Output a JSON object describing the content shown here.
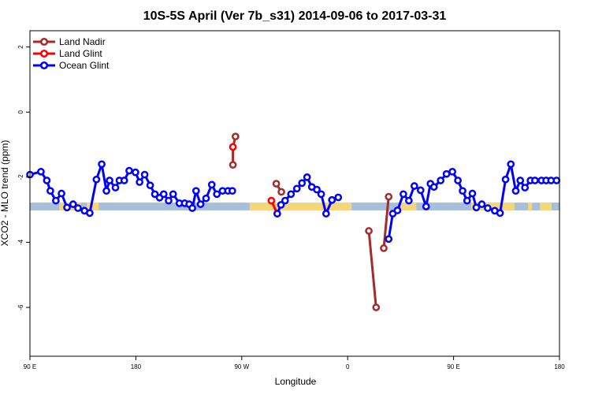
{
  "chart_data": {
    "type": "line",
    "title": "10S-5S April (Ver 7b_s31)   2014-09-06 to 2017-03-31",
    "xlabel": "Longitude",
    "ylabel": "XCO2 - MLO trend (ppm)",
    "xlim": [
      -90,
      180
    ],
    "ylim": [
      -7.5,
      2.5
    ],
    "x_ticks": [
      {
        "value": -90,
        "label": "90 E"
      },
      {
        "value": -36,
        "label": "180"
      },
      {
        "value": 18,
        "label": "90 W"
      },
      {
        "value": 72,
        "label": "0"
      },
      {
        "value": 126,
        "label": "90 E"
      },
      {
        "value": 180,
        "label": "180"
      }
    ],
    "y_ticks": [
      {
        "value": 2,
        "label": "2"
      },
      {
        "value": 0,
        "label": "0"
      },
      {
        "value": -2,
        "label": "-2"
      },
      {
        "value": -4,
        "label": "-4"
      },
      {
        "value": -6,
        "label": "-6"
      }
    ],
    "legend_position": "top-left",
    "band": {
      "y_range": [
        -3.02,
        -2.78
      ],
      "ocean_color": "#a7bfdc",
      "land_color": "#f5d77a",
      "land_x_ranges": [
        [
          -75,
          -64
        ],
        [
          -61,
          -55
        ],
        [
          22,
          74
        ],
        [
          99,
          107
        ],
        [
          135,
          157
        ],
        [
          164,
          166
        ],
        [
          170,
          176
        ]
      ]
    },
    "series": [
      {
        "name": "Land Nadir",
        "color": "#a52a2a",
        "segments": [
          {
            "x": [
              13.5,
              13.5,
              14.8
            ],
            "y": [
              -1.62,
              -1.07,
              -0.75
            ]
          },
          {
            "x": [
              35.6,
              38.2
            ],
            "y": [
              -2.2,
              -2.45
            ]
          },
          {
            "x": [
              82.8,
              86.5
            ],
            "y": [
              -3.65,
              -6.0
            ]
          },
          {
            "x": [
              90.4,
              92.9
            ],
            "y": [
              -4.18,
              -2.6
            ]
          }
        ]
      },
      {
        "name": "Land Glint",
        "color": "#ff0000",
        "segments": [
          {
            "x": [
              13.5
            ],
            "y": [
              -1.07
            ]
          },
          {
            "x": [
              33.1,
              36.1
            ],
            "y": [
              -2.72,
              -3.12
            ]
          }
        ]
      },
      {
        "name": "Ocean Glint",
        "color": "#0000ff",
        "segments": [
          {
            "x": [
              -90.0,
              -84.4,
              -81.4,
              -79.6,
              -76.8,
              -73.9,
              -71.1,
              -68.0,
              -65.5,
              -62.2,
              -59.5,
              -56.1,
              -53.4,
              -51.0,
              -49.4,
              -46.4,
              -44.4,
              -41.9,
              -39.4,
              -36.2,
              -34.1,
              -31.5,
              -28.7,
              -26.3,
              -23.9,
              -21.8,
              -19.3,
              -17.0,
              -13.8,
              -11.1,
              -8.8,
              -7.2,
              -5.3,
              -3.0,
              -0.2,
              2.7,
              5.3,
              8.2,
              11.0,
              13.2
            ],
            "y": [
              -1.92,
              -1.83,
              -2.1,
              -2.42,
              -2.72,
              -2.5,
              -2.93,
              -2.83,
              -2.95,
              -3.03,
              -3.1,
              -2.07,
              -1.6,
              -2.42,
              -2.1,
              -2.32,
              -2.1,
              -2.1,
              -1.8,
              -1.85,
              -2.15,
              -1.92,
              -2.25,
              -2.52,
              -2.63,
              -2.52,
              -2.72,
              -2.52,
              -2.8,
              -2.8,
              -2.83,
              -2.95,
              -2.42,
              -2.83,
              -2.65,
              -2.23,
              -2.52,
              -2.42,
              -2.42,
              -2.42
            ]
          },
          {
            "x": [
              36.1,
              38.0,
              40.1,
              43.1,
              46.1,
              48.7,
              51.3,
              53.7,
              56.3,
              58.5,
              61.0,
              64.0
            ],
            "y": [
              -3.12,
              -2.85,
              -2.72,
              -2.52,
              -2.35,
              -2.18,
              -2.0,
              -2.3,
              -2.38,
              -2.52,
              -3.12,
              -2.7
            ]
          },
          {
            "x": [
              64.0,
              67.2
            ],
            "y": [
              -2.7,
              -2.62
            ]
          },
          {
            "x": [
              92.9,
              95.0,
              97.4,
              100.4,
              103.2,
              106.0,
              109.2,
              112.0,
              114.2,
              116.0,
              119.4,
              122.4,
              125.4,
              128.2,
              130.6,
              132.9,
              135.6,
              137.6,
              140.4,
              143.4,
              147.0,
              149.7,
              152.5,
              155.2,
              157.7,
              160.0,
              162.4,
              165.2,
              167.5,
              170.8,
              173.2,
              175.7,
              178.5
            ],
            "y": [
              -3.9,
              -3.12,
              -3.02,
              -2.52,
              -2.72,
              -2.27,
              -2.4,
              -2.9,
              -2.2,
              -2.3,
              -2.1,
              -1.9,
              -1.83,
              -2.1,
              -2.42,
              -2.72,
              -2.5,
              -2.93,
              -2.83,
              -2.95,
              -3.03,
              -3.1,
              -2.07,
              -1.6,
              -2.42,
              -2.1,
              -2.32,
              -2.1,
              -2.1,
              -2.1,
              -2.1,
              -2.1,
              -2.1
            ]
          }
        ]
      }
    ]
  }
}
